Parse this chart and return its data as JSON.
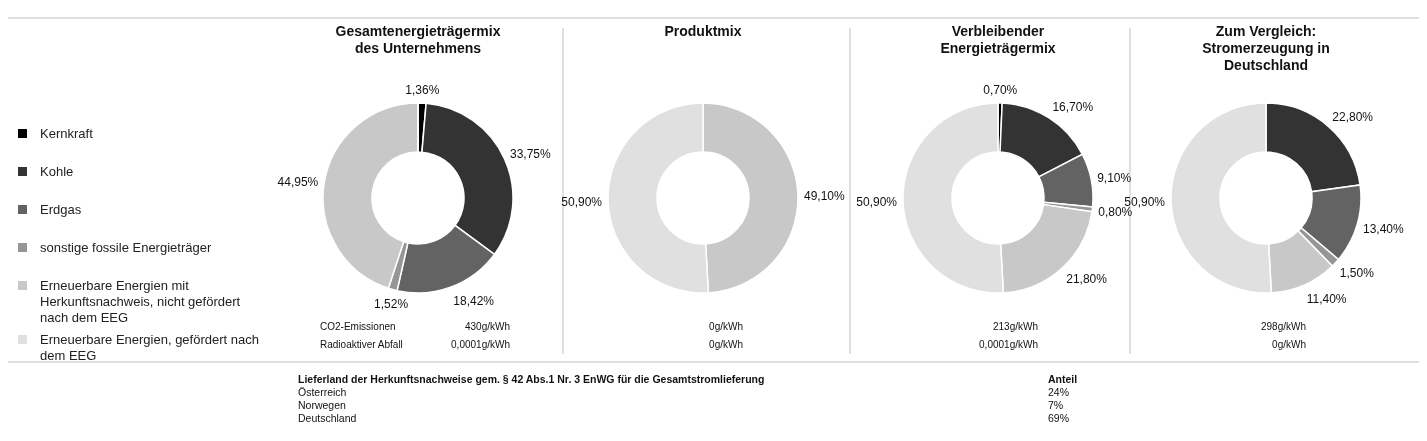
{
  "chart_data": [
    {
      "type": "donut",
      "title": "Gesamtenergieträgermix des Unternehmens",
      "categories": [
        "Kernkraft",
        "Kohle",
        "Erdgas",
        "sonstige fossile Energieträger",
        "Erneuerbare Energien mit Herkunftsnachweis, nicht gefördert nach dem EEG",
        "Erneuerbare Energien, gefördert nach dem EEG"
      ],
      "values": [
        1.36,
        33.75,
        18.42,
        1.52,
        44.95,
        0
      ],
      "value_labels": [
        "1,36%",
        "33,75%",
        "18,42%",
        "1,52%",
        "44,95%",
        null
      ],
      "colors": [
        "#000000",
        "#333333",
        "#636363",
        "#969696",
        "#c8c8c8",
        "#e0e0e0"
      ],
      "legend": "left",
      "annotations": [
        "CO2-Emissionen",
        "430g/kWh",
        "Radioaktiver Abfall",
        "0,0001g/kWh"
      ]
    },
    {
      "type": "donut",
      "title": "Produktmix",
      "values": [
        0,
        0,
        0,
        0,
        49.1,
        50.9
      ],
      "value_labels": [
        null,
        null,
        null,
        null,
        "49,10%",
        "50,90%"
      ],
      "colors": [
        "#000000",
        "#333333",
        "#636363",
        "#969696",
        "#c8c8c8",
        "#e0e0e0"
      ],
      "annotations": [
        "0g/kWh",
        "0g/kWh"
      ]
    },
    {
      "type": "donut",
      "title": "Verbleibender Energieträgermix",
      "values": [
        0.7,
        16.7,
        9.1,
        0.8,
        21.8,
        50.9
      ],
      "value_labels": [
        "0,70%",
        "16,70%",
        "9,10%",
        "0,80%",
        "21,80%",
        "50,90%"
      ],
      "colors": [
        "#000000",
        "#333333",
        "#636363",
        "#969696",
        "#c8c8c8",
        "#e0e0e0"
      ],
      "annotations": [
        "213g/kWh",
        "0,0001g/kWh"
      ]
    },
    {
      "type": "donut",
      "title": "Zum Vergleich: Stromerzeugung in Deutschland",
      "values": [
        0,
        22.8,
        13.4,
        1.5,
        11.4,
        50.9
      ],
      "value_labels": [
        null,
        "22,80%",
        "13,40%",
        "1,50%",
        "11,40%",
        "50,90%"
      ],
      "colors": [
        "#000000",
        "#333333",
        "#636363",
        "#969696",
        "#c8c8c8",
        "#e0e0e0"
      ],
      "annotations": [
        "298g/kWh",
        "0g/kWh"
      ]
    },
    {
      "type": "other",
      "annotations": [
        "Lieferland der Herkunftsnachweise gem. § 42 Abs.1 Nr. 3 EnWG für die Gesamtstromlieferung",
        "Anteil",
        "Österreich",
        "24%",
        "Norwegen",
        "7%",
        "Deutschland",
        "69%"
      ]
    }
  ]
}
